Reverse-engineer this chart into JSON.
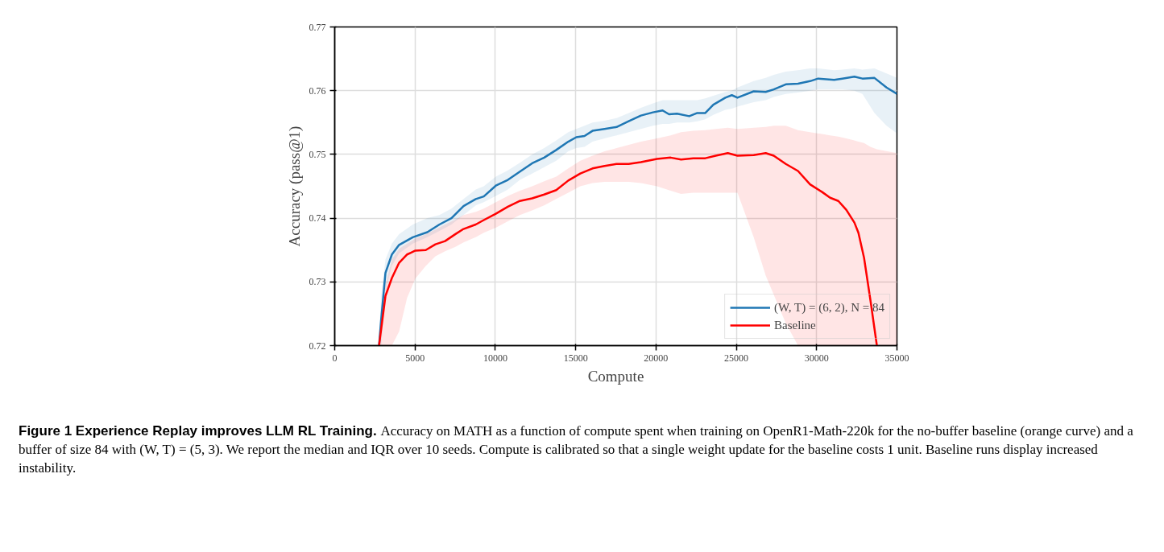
{
  "chart_data": {
    "type": "line",
    "xlabel": "Compute",
    "ylabel": "Accuracy (pass@1)",
    "xlim": [
      0,
      35000
    ],
    "xticks": [
      0,
      5000,
      10000,
      15000,
      20000,
      25000,
      30000,
      35000
    ],
    "ylim": [
      0.72,
      0.77
    ],
    "yticks": [
      0.72,
      0.73,
      0.74,
      0.75,
      0.76,
      0.77
    ],
    "grid": true,
    "legend": "bottom right",
    "line_style": "solid",
    "annotations": [
      "Figure 1  Experience Replay improves LLM RL Training.",
      "Accuracy on MATH as a function of compute spent when training on OpenR1-Math-220k for the no-buffer baseline (orange curve) and a buffer of size 84 with (W, T) = (5, 3). We report the median and IQR over 10 seeds. Compute is calibrated so that a single weight update for the baseline costs 1 unit. Baseline runs display increased instability."
    ],
    "series": [
      {
        "name": "(W, T) = (6, 2), N = 84",
        "color": "#1f77b4",
        "x": [
          2760,
          2900,
          3160,
          3560,
          4010,
          4860,
          5770,
          6520,
          7270,
          8020,
          8780,
          9280,
          10030,
          10780,
          11530,
          12290,
          13040,
          13790,
          14540,
          15040,
          15550,
          16050,
          16800,
          17550,
          18300,
          19060,
          19810,
          20410,
          20810,
          21310,
          22070,
          22570,
          23070,
          23570,
          24320,
          24720,
          25070,
          26080,
          26830,
          27330,
          28080,
          28840,
          29590,
          30090,
          31090,
          31600,
          32350,
          32850,
          33600,
          34350,
          35000
        ],
        "values": [
          0.72,
          0.7243,
          0.7314,
          0.7343,
          0.7358,
          0.737,
          0.7378,
          0.739,
          0.74,
          0.7419,
          0.743,
          0.7434,
          0.7451,
          0.746,
          0.7473,
          0.7486,
          0.7495,
          0.7507,
          0.752,
          0.7527,
          0.7529,
          0.7537,
          0.754,
          0.7543,
          0.7552,
          0.7561,
          0.7566,
          0.7569,
          0.7563,
          0.7564,
          0.756,
          0.7565,
          0.7565,
          0.7578,
          0.7589,
          0.7593,
          0.7589,
          0.7599,
          0.7598,
          0.7602,
          0.761,
          0.7611,
          0.7615,
          0.7619,
          0.7617,
          0.7619,
          0.7622,
          0.7619,
          0.762,
          0.7605,
          0.7595
        ],
        "lower": [
          0.72,
          0.72,
          0.7285,
          0.7325,
          0.7345,
          0.736,
          0.737,
          0.738,
          0.739,
          0.7405,
          0.742,
          0.7425,
          0.7435,
          0.7445,
          0.746,
          0.747,
          0.748,
          0.749,
          0.7505,
          0.751,
          0.7512,
          0.752,
          0.7525,
          0.753,
          0.7535,
          0.754,
          0.7545,
          0.7548,
          0.7548,
          0.755,
          0.755,
          0.7552,
          0.7555,
          0.7562,
          0.757,
          0.7572,
          0.7575,
          0.7582,
          0.7585,
          0.759,
          0.7595,
          0.7597,
          0.76,
          0.7602,
          0.7602,
          0.7602,
          0.76,
          0.7595,
          0.7565,
          0.7545,
          0.7533
        ],
        "upper": [
          0.7215,
          0.728,
          0.7335,
          0.736,
          0.7375,
          0.739,
          0.74,
          0.7405,
          0.7415,
          0.743,
          0.7445,
          0.745,
          0.7465,
          0.7475,
          0.7487,
          0.75,
          0.751,
          0.7522,
          0.7535,
          0.754,
          0.7545,
          0.755,
          0.7553,
          0.7557,
          0.7565,
          0.7573,
          0.758,
          0.7585,
          0.7585,
          0.7585,
          0.7585,
          0.7585,
          0.7588,
          0.7592,
          0.7598,
          0.76,
          0.7605,
          0.7615,
          0.762,
          0.7625,
          0.763,
          0.7632,
          0.7635,
          0.7635,
          0.7632,
          0.7633,
          0.7635,
          0.7633,
          0.7635,
          0.7627,
          0.762
        ]
      },
      {
        "name": "Baseline",
        "color": "#ff0000",
        "x": [
          2760,
          3160,
          3560,
          4010,
          4510,
          5020,
          5670,
          6270,
          6870,
          7520,
          8020,
          8780,
          9280,
          10030,
          10780,
          11530,
          12290,
          13040,
          13790,
          14540,
          15290,
          16050,
          16800,
          17550,
          18300,
          19060,
          20060,
          20910,
          21560,
          22320,
          23070,
          23720,
          24470,
          25070,
          26080,
          26830,
          27330,
          28080,
          28840,
          29590,
          30340,
          30840,
          31350,
          31850,
          32350,
          32600,
          32950,
          33350,
          33750,
          35000
        ],
        "values": [
          0.72,
          0.7278,
          0.7306,
          0.733,
          0.7343,
          0.7349,
          0.735,
          0.7359,
          0.7364,
          0.7375,
          0.7383,
          0.739,
          0.7397,
          0.7407,
          0.7418,
          0.7427,
          0.7431,
          0.7437,
          0.7444,
          0.7459,
          0.747,
          0.7478,
          0.7482,
          0.7485,
          0.7485,
          0.7488,
          0.7493,
          0.7495,
          0.7492,
          0.7494,
          0.7494,
          0.7498,
          0.7502,
          0.7498,
          0.7499,
          0.7502,
          0.7498,
          0.7485,
          0.7474,
          0.7453,
          0.7441,
          0.7432,
          0.7427,
          0.7413,
          0.7393,
          0.7377,
          0.7338,
          0.7271,
          0.72,
          null
        ],
        "lower": [
          0.72,
          0.72,
          0.72,
          0.7222,
          0.7275,
          0.7305,
          0.7325,
          0.734,
          0.7348,
          0.7355,
          0.7362,
          0.737,
          0.7377,
          0.7385,
          0.7395,
          0.7405,
          0.7412,
          0.742,
          0.743,
          0.744,
          0.745,
          0.7455,
          0.7457,
          0.7457,
          0.7457,
          0.7455,
          0.745,
          0.7443,
          0.7438,
          0.744,
          0.744,
          0.744,
          0.744,
          0.744,
          0.737,
          0.731,
          0.728,
          0.7235,
          0.72,
          0.72,
          0.72,
          0.72,
          0.72,
          0.72,
          0.72,
          0.72,
          0.72,
          0.72,
          0.72,
          0.72
        ],
        "upper": [
          0.72,
          0.7295,
          0.7335,
          0.7352,
          0.736,
          0.7368,
          0.7375,
          0.7382,
          0.739,
          0.7398,
          0.7405,
          0.741,
          0.7415,
          0.7425,
          0.7435,
          0.7443,
          0.745,
          0.7458,
          0.7465,
          0.7478,
          0.749,
          0.7498,
          0.7505,
          0.751,
          0.7515,
          0.752,
          0.7525,
          0.753,
          0.7535,
          0.7537,
          0.7538,
          0.754,
          0.7542,
          0.754,
          0.7542,
          0.7543,
          0.7545,
          0.7545,
          0.7538,
          0.7535,
          0.7532,
          0.753,
          0.7528,
          0.7525,
          0.7522,
          0.752,
          0.7518,
          0.7512,
          0.7508,
          0.7502
        ]
      }
    ]
  }
}
